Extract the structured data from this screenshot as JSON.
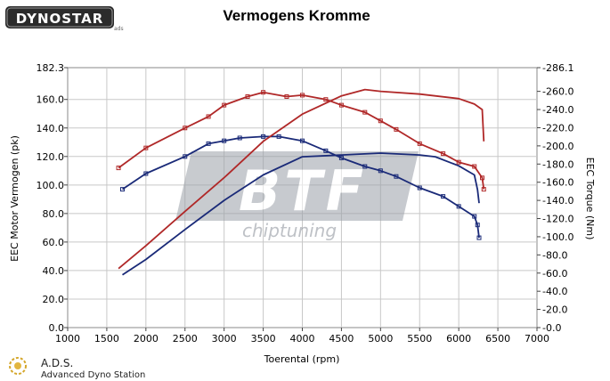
{
  "header": {
    "logo_text": "DYNOSTAR",
    "logo_sub": "ads"
  },
  "footer": {
    "brand": "A.D.S.",
    "tagline": "Advanced Dyno Station"
  },
  "watermark": {
    "logo_text": "BTF",
    "sub_text": "chiptuning"
  },
  "colors": {
    "stock": "#1a2a78",
    "tuned": "#b02828",
    "grid": "#c8c8c8"
  },
  "chart_data": {
    "type": "line",
    "title": "Vermogens Kromme",
    "xlabel": "Toerental (rpm)",
    "ylabel": "EEC Motor Vermogen (pk)",
    "y2label": "EEC Torque (Nm)",
    "xlim": [
      1000,
      7000
    ],
    "ylim": [
      0,
      182.3
    ],
    "y2lim": [
      0,
      286.1
    ],
    "x_ticks": [
      "1000",
      "1500",
      "2000",
      "2500",
      "3000",
      "3500",
      "4000",
      "4500",
      "5000",
      "5500",
      "6000",
      "6500",
      "7000"
    ],
    "y_ticks": [
      "0.0",
      "20.0",
      "40.0",
      "60.0",
      "80.0",
      "100.0",
      "120.0",
      "140.0",
      "160.0",
      "182.3"
    ],
    "y2_ticks": [
      "0.0",
      "20.0",
      "40.0",
      "60.0",
      "80.0",
      "100.0",
      "120.0",
      "140.0",
      "160.0",
      "180.0",
      "200.0",
      "220.0",
      "240.0",
      "260.0",
      "286.1"
    ],
    "grid": true,
    "series": [
      {
        "axis": "left",
        "color": "stock",
        "marker": true,
        "x": [
          1700,
          2000,
          2500,
          2800,
          3000,
          3200,
          3500,
          3700,
          4000,
          4300,
          4500,
          4800,
          5000,
          5200,
          5500,
          5800,
          6000,
          6200,
          6240,
          6260
        ],
        "y": [
          97,
          108,
          120,
          129,
          131,
          133,
          134,
          134,
          131,
          124,
          119,
          113,
          110,
          106,
          98,
          92,
          85,
          78,
          72,
          63
        ]
      },
      {
        "axis": "right",
        "color": "stock",
        "marker": false,
        "x": [
          1700,
          2000,
          2500,
          3000,
          3500,
          4000,
          4500,
          5000,
          5500,
          5700,
          6000,
          6200,
          6240,
          6260
        ],
        "y": [
          58,
          75,
          108,
          140,
          168,
          188,
          190,
          192,
          190,
          188,
          178,
          168,
          152,
          137
        ]
      },
      {
        "axis": "left",
        "color": "tuned",
        "marker": true,
        "x": [
          1650,
          2000,
          2500,
          2800,
          3000,
          3300,
          3500,
          3800,
          4000,
          4300,
          4500,
          4800,
          5000,
          5200,
          5500,
          5800,
          6000,
          6200,
          6300,
          6320
        ],
        "y": [
          112,
          126,
          140,
          148,
          156,
          162,
          165,
          162,
          163,
          160,
          156,
          151,
          145,
          139,
          129,
          122,
          116,
          113,
          105,
          97
        ]
      },
      {
        "axis": "right",
        "color": "tuned",
        "marker": false,
        "x": [
          1650,
          2000,
          2500,
          3000,
          3500,
          4000,
          4500,
          4800,
          5000,
          5500,
          6000,
          6200,
          6300,
          6320
        ],
        "y": [
          65,
          90,
          128,
          165,
          205,
          235,
          255,
          262,
          260,
          257,
          252,
          246,
          240,
          205
        ]
      }
    ]
  }
}
